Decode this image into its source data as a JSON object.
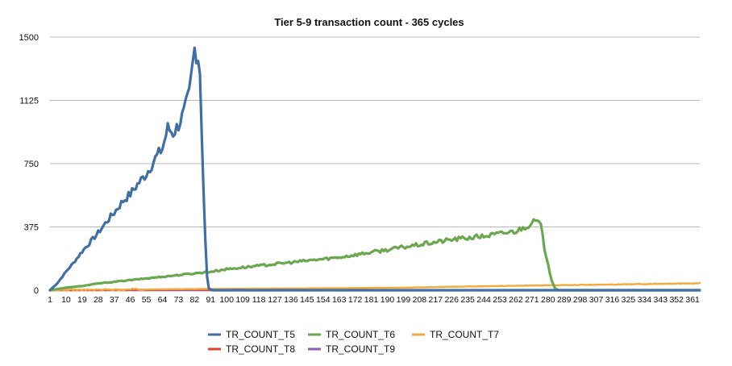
{
  "chart_data": {
    "type": "line",
    "title": "Tier 5-9 transaction count - 365 cycles",
    "xlabel": "",
    "ylabel": "",
    "ylim": [
      0,
      1500
    ],
    "yticks": [
      0,
      375,
      750,
      1125,
      1500
    ],
    "xlim": [
      1,
      365
    ],
    "xticks": [
      1,
      10,
      19,
      28,
      37,
      46,
      55,
      64,
      73,
      82,
      91,
      100,
      109,
      118,
      127,
      136,
      145,
      154,
      163,
      172,
      181,
      190,
      199,
      208,
      217,
      226,
      235,
      244,
      253,
      262,
      271,
      280,
      289,
      298,
      307,
      316,
      325,
      334,
      343,
      352,
      361
    ],
    "grid": true,
    "legend_position": "bottom",
    "series": [
      {
        "name": "TR_COUNT_T5",
        "color": "#3f6fa5",
        "points": [
          [
            1,
            0
          ],
          [
            5,
            40
          ],
          [
            10,
            110
          ],
          [
            14,
            160
          ],
          [
            19,
            230
          ],
          [
            24,
            290
          ],
          [
            28,
            340
          ],
          [
            33,
            410
          ],
          [
            37,
            460
          ],
          [
            42,
            530
          ],
          [
            46,
            570
          ],
          [
            51,
            640
          ],
          [
            55,
            690
          ],
          [
            60,
            780
          ],
          [
            64,
            840
          ],
          [
            67,
            960
          ],
          [
            70,
            930
          ],
          [
            73,
            980
          ],
          [
            76,
            1050
          ],
          [
            79,
            1160
          ],
          [
            82,
            1430
          ],
          [
            84,
            1380
          ],
          [
            85,
            1300
          ],
          [
            86,
            950
          ],
          [
            87,
            600
          ],
          [
            88,
            300
          ],
          [
            89,
            80
          ],
          [
            90,
            10
          ],
          [
            92,
            0
          ],
          [
            365,
            0
          ]
        ]
      },
      {
        "name": "TR_COUNT_T6",
        "color": "#6aa84f",
        "points": [
          [
            1,
            0
          ],
          [
            10,
            15
          ],
          [
            19,
            25
          ],
          [
            28,
            40
          ],
          [
            37,
            50
          ],
          [
            46,
            60
          ],
          [
            55,
            70
          ],
          [
            64,
            80
          ],
          [
            73,
            90
          ],
          [
            82,
            100
          ],
          [
            91,
            110
          ],
          [
            100,
            125
          ],
          [
            109,
            135
          ],
          [
            118,
            145
          ],
          [
            127,
            155
          ],
          [
            136,
            165
          ],
          [
            145,
            175
          ],
          [
            154,
            185
          ],
          [
            163,
            195
          ],
          [
            172,
            210
          ],
          [
            181,
            225
          ],
          [
            190,
            240
          ],
          [
            199,
            255
          ],
          [
            208,
            270
          ],
          [
            217,
            285
          ],
          [
            226,
            300
          ],
          [
            235,
            310
          ],
          [
            244,
            320
          ],
          [
            253,
            335
          ],
          [
            262,
            350
          ],
          [
            268,
            380
          ],
          [
            271,
            400
          ],
          [
            274,
            410
          ],
          [
            276,
            380
          ],
          [
            278,
            250
          ],
          [
            280,
            150
          ],
          [
            282,
            60
          ],
          [
            284,
            10
          ],
          [
            286,
            0
          ],
          [
            365,
            0
          ]
        ]
      },
      {
        "name": "TR_COUNT_T7",
        "color": "#f5a93b",
        "points": [
          [
            1,
            0
          ],
          [
            55,
            5
          ],
          [
            91,
            8
          ],
          [
            127,
            10
          ],
          [
            163,
            12
          ],
          [
            199,
            15
          ],
          [
            235,
            22
          ],
          [
            271,
            28
          ],
          [
            289,
            30
          ],
          [
            316,
            34
          ],
          [
            343,
            38
          ],
          [
            365,
            42
          ]
        ]
      },
      {
        "name": "TR_COUNT_T8",
        "color": "#e0402a",
        "points": [
          [
            1,
            0
          ],
          [
            60,
            3
          ],
          [
            82,
            6
          ],
          [
            90,
            2
          ],
          [
            100,
            0
          ],
          [
            365,
            0
          ]
        ]
      },
      {
        "name": "TR_COUNT_T9",
        "color": "#8e5cb5",
        "points": [
          [
            1,
            0
          ],
          [
            365,
            0
          ]
        ]
      }
    ]
  }
}
